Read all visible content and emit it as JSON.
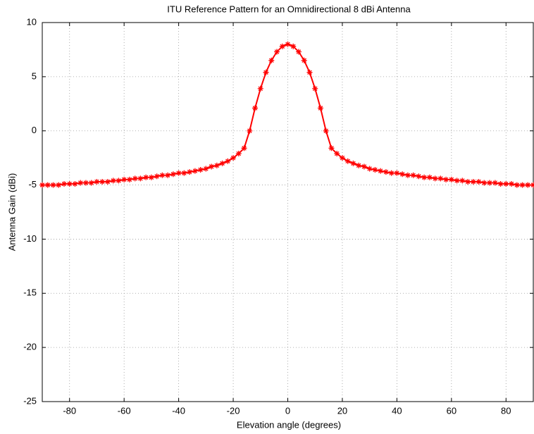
{
  "chart_data": {
    "type": "line",
    "title": "ITU Reference Pattern for an Omnidirectional 8 dBi Antenna",
    "xlabel": "Elevation angle (degrees)",
    "ylabel": "Antenna Gain (dBi)",
    "x": [
      -90,
      -88,
      -86,
      -84,
      -82,
      -80,
      -78,
      -76,
      -74,
      -72,
      -70,
      -68,
      -66,
      -64,
      -62,
      -60,
      -58,
      -56,
      -54,
      -52,
      -50,
      -48,
      -46,
      -44,
      -42,
      -40,
      -38,
      -36,
      -34,
      -32,
      -30,
      -28,
      -26,
      -24,
      -22,
      -20,
      -18,
      -16,
      -14,
      -12,
      -10,
      -8,
      -6,
      -4,
      -2,
      0,
      2,
      4,
      6,
      8,
      10,
      12,
      14,
      16,
      18,
      20,
      22,
      24,
      26,
      28,
      30,
      32,
      34,
      36,
      38,
      40,
      42,
      44,
      46,
      48,
      50,
      52,
      54,
      56,
      58,
      60,
      62,
      64,
      66,
      68,
      70,
      72,
      74,
      76,
      78,
      80,
      82,
      84,
      86,
      88,
      90
    ],
    "values": [
      -5.0,
      -5.0,
      -5.0,
      -5.0,
      -4.9,
      -4.9,
      -4.9,
      -4.8,
      -4.8,
      -4.8,
      -4.7,
      -4.7,
      -4.7,
      -4.6,
      -4.6,
      -4.5,
      -4.5,
      -4.4,
      -4.4,
      -4.3,
      -4.3,
      -4.2,
      -4.1,
      -4.1,
      -4.0,
      -3.9,
      -3.9,
      -3.8,
      -3.7,
      -3.6,
      -3.5,
      -3.3,
      -3.2,
      -3.0,
      -2.8,
      -2.5,
      -2.1,
      -1.6,
      0.0,
      2.1,
      3.9,
      5.4,
      6.5,
      7.3,
      7.8,
      8.0,
      7.8,
      7.3,
      6.5,
      5.4,
      3.9,
      2.1,
      0.0,
      -1.6,
      -2.1,
      -2.5,
      -2.8,
      -3.0,
      -3.2,
      -3.3,
      -3.5,
      -3.6,
      -3.7,
      -3.8,
      -3.9,
      -3.9,
      -4.0,
      -4.1,
      -4.1,
      -4.2,
      -4.3,
      -4.3,
      -4.4,
      -4.4,
      -4.5,
      -4.5,
      -4.6,
      -4.6,
      -4.7,
      -4.7,
      -4.7,
      -4.8,
      -4.8,
      -4.8,
      -4.9,
      -4.9,
      -4.9,
      -5.0,
      -5.0,
      -5.0,
      -5.0
    ],
    "color": "#ff0000",
    "marker": "*",
    "xlim": [
      -90,
      90
    ],
    "xticks": [
      -80,
      -60,
      -40,
      -20,
      0,
      20,
      40,
      60,
      80
    ],
    "ylim": [
      -25,
      10
    ],
    "yticks": [
      -25,
      -20,
      -15,
      -10,
      -5,
      0,
      5,
      10
    ],
    "grid": true
  }
}
